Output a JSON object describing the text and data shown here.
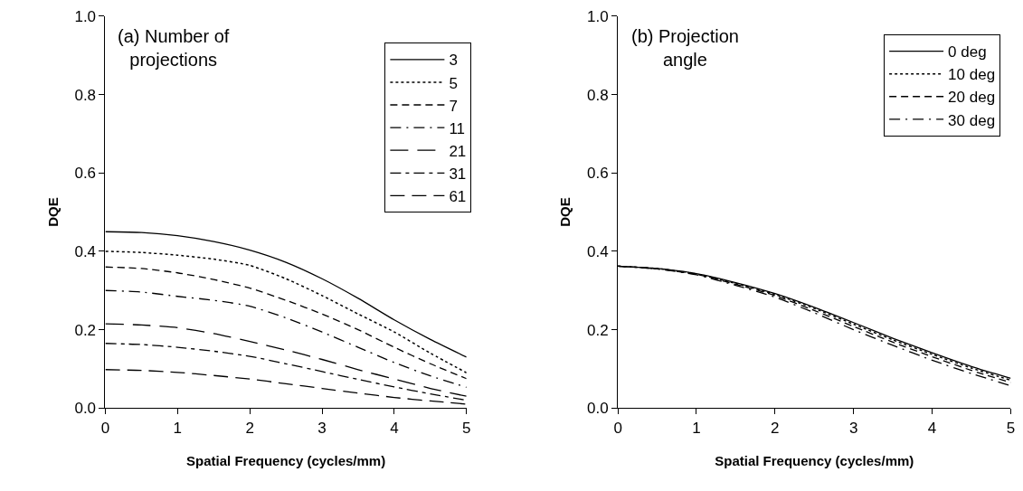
{
  "chart_data": [
    {
      "type": "line",
      "title": "(a) Number of projections",
      "xlabel": "Spatial Frequency (cycles/mm)",
      "ylabel": "DQE",
      "x": [
        0,
        0.5,
        1,
        1.5,
        2,
        2.5,
        3,
        3.5,
        4,
        4.5,
        5
      ],
      "xlim": [
        0,
        5
      ],
      "xticks": [
        0,
        1,
        2,
        3,
        4,
        5
      ],
      "ylim": [
        0,
        1
      ],
      "yticks": [
        {
          "value": 0,
          "label": "0.0"
        },
        {
          "value": 0.2,
          "label": "0.2"
        },
        {
          "value": 0.4,
          "label": "0.4"
        },
        {
          "value": 0.6,
          "label": "0.6"
        },
        {
          "value": 0.8,
          "label": "0.8"
        },
        {
          "value": 1,
          "label": "1.0"
        }
      ],
      "grid": false,
      "legend": "top right",
      "marker": "none",
      "series": [
        {
          "name": "3",
          "color": "#000000",
          "line_style": "solid",
          "values": [
            0.45,
            0.448,
            0.44,
            0.425,
            0.403,
            0.372,
            0.33,
            0.28,
            0.225,
            0.175,
            0.13
          ]
        },
        {
          "name": "5",
          "color": "#000000",
          "line_style": "dotted",
          "values": [
            0.4,
            0.397,
            0.39,
            0.38,
            0.364,
            0.33,
            0.287,
            0.24,
            0.194,
            0.14,
            0.09
          ]
        },
        {
          "name": "7",
          "color": "#000000",
          "line_style": "dashed",
          "values": [
            0.36,
            0.356,
            0.345,
            0.328,
            0.306,
            0.275,
            0.24,
            0.2,
            0.155,
            0.113,
            0.075
          ]
        },
        {
          "name": "11",
          "color": "#000000",
          "line_style": "dashed",
          "values": [
            0.3,
            0.296,
            0.285,
            0.275,
            0.26,
            0.23,
            0.194,
            0.155,
            0.116,
            0.082,
            0.053
          ]
        },
        {
          "name": "21",
          "color": "#000000",
          "line_style": "dashed",
          "values": [
            0.215,
            0.212,
            0.205,
            0.19,
            0.17,
            0.148,
            0.124,
            0.098,
            0.074,
            0.05,
            0.03
          ]
        },
        {
          "name": "31",
          "color": "#000000",
          "line_style": "dashed",
          "values": [
            0.165,
            0.162,
            0.155,
            0.145,
            0.132,
            0.113,
            0.093,
            0.073,
            0.054,
            0.036,
            0.02
          ]
        },
        {
          "name": "61",
          "color": "#000000",
          "line_style": "dashed",
          "values": [
            0.098,
            0.096,
            0.091,
            0.083,
            0.074,
            0.062,
            0.05,
            0.038,
            0.027,
            0.018,
            0.01
          ]
        }
      ]
    },
    {
      "type": "line",
      "title": "(b) Projection angle",
      "xlabel": "Spatial Frequency (cycles/mm)",
      "ylabel": "DQE",
      "x": [
        0,
        0.5,
        1,
        1.5,
        2,
        2.5,
        3,
        3.5,
        4,
        4.5,
        5
      ],
      "xlim": [
        0,
        5
      ],
      "xticks": [
        0,
        1,
        2,
        3,
        4,
        5
      ],
      "ylim": [
        0,
        1
      ],
      "yticks": [
        {
          "value": 0,
          "label": "0.0"
        },
        {
          "value": 0.2,
          "label": "0.2"
        },
        {
          "value": 0.4,
          "label": "0.4"
        },
        {
          "value": 0.6,
          "label": "0.6"
        },
        {
          "value": 0.8,
          "label": "0.8"
        },
        {
          "value": 1,
          "label": "1.0"
        }
      ],
      "grid": false,
      "legend": "top right",
      "marker": "none",
      "series": [
        {
          "name": "0 deg",
          "color": "#000000",
          "line_style": "solid",
          "values": [
            0.362,
            0.356,
            0.343,
            0.32,
            0.292,
            0.257,
            0.218,
            0.178,
            0.141,
            0.106,
            0.076
          ]
        },
        {
          "name": "10 deg",
          "color": "#000000",
          "line_style": "dotted",
          "values": [
            0.362,
            0.356,
            0.342,
            0.318,
            0.29,
            0.254,
            0.214,
            0.174,
            0.137,
            0.102,
            0.071
          ]
        },
        {
          "name": "20 deg",
          "color": "#000000",
          "line_style": "dashed",
          "values": [
            0.362,
            0.355,
            0.341,
            0.316,
            0.287,
            0.249,
            0.208,
            0.168,
            0.131,
            0.096,
            0.065
          ]
        },
        {
          "name": "30 deg",
          "color": "#000000",
          "line_style": "dashed",
          "values": [
            0.362,
            0.355,
            0.34,
            0.313,
            0.283,
            0.243,
            0.2,
            0.16,
            0.122,
            0.088,
            0.057
          ]
        }
      ]
    }
  ]
}
